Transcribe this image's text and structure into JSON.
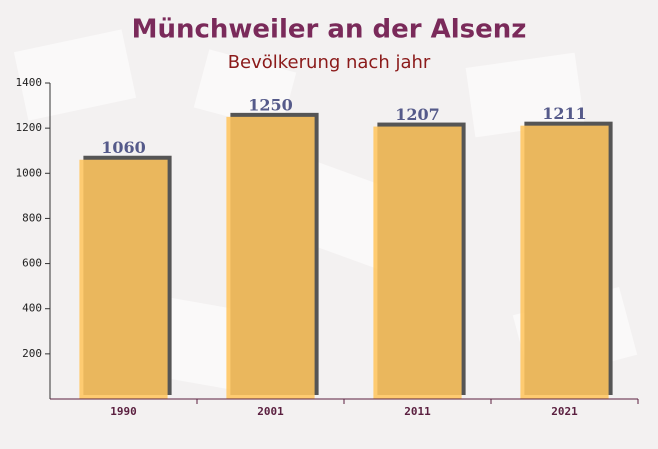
{
  "chart_data": {
    "type": "bar",
    "title": "Münchweiler an der Alsenz",
    "subtitle": "Bevölkerung nach jahr",
    "categories": [
      "1990",
      "2001",
      "2011",
      "2021"
    ],
    "values": [
      1060,
      1250,
      1207,
      1211
    ],
    "color": "#ffc55e",
    "ylim": [
      0,
      1400
    ],
    "yticks": [
      200,
      400,
      600,
      800,
      1000,
      1200,
      1400
    ],
    "grid": false
  }
}
